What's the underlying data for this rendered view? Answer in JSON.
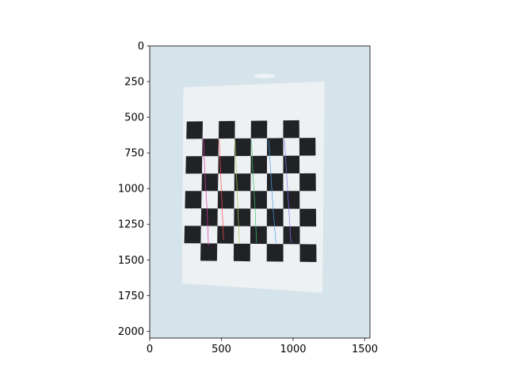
{
  "chart_data": {
    "type": "image",
    "title": "",
    "xlabel": "",
    "ylabel": "",
    "xlim": [
      0,
      1536
    ],
    "ylim": [
      2048,
      0
    ],
    "x_ticks": [
      0,
      500,
      1000,
      1500
    ],
    "y_ticks": [
      0,
      250,
      500,
      750,
      1000,
      1250,
      1500,
      1750,
      2000
    ],
    "x_tick_labels": [
      "0",
      "500",
      "1000",
      "1500"
    ],
    "y_tick_labels": [
      "0",
      "250",
      "500",
      "750",
      "1000",
      "1250",
      "1500",
      "1750",
      "2000"
    ],
    "image": {
      "description_colors": {
        "background": "#d5e3ea",
        "paper": "#eef1f4",
        "square": "#202226"
      },
      "paper_corners": [
        [
          235,
          290
        ],
        [
          1220,
          250
        ],
        [
          1205,
          1730
        ],
        [
          225,
          1665
        ]
      ],
      "grid_rows": 8,
      "grid_cols": 8,
      "grid_corners": {
        "top_left": [
          258,
          530
        ],
        "top_right": [
          1155,
          520
        ],
        "bottom_left": [
          238,
          1505
        ],
        "bottom_right": [
          1163,
          1515
        ]
      },
      "corner_lines": [
        {
          "color": "#d83aa8",
          "x": [
            375,
            385,
            400,
            410
          ],
          "y": [
            650,
            900,
            1150,
            1400
          ]
        },
        {
          "color": "#ff4d4d",
          "x": [
            485,
            495,
            505,
            515
          ],
          "y": [
            660,
            900,
            1130,
            1360
          ]
        },
        {
          "color": "#a6c24a",
          "x": [
            595,
            605,
            615,
            625
          ],
          "y": [
            660,
            900,
            1140,
            1380
          ]
        },
        {
          "color": "#39c26c",
          "x": [
            710,
            720,
            735,
            745
          ],
          "y": [
            660,
            900,
            1140,
            1380
          ]
        },
        {
          "color": "#4aa0e0",
          "x": [
            830,
            845,
            860,
            880
          ],
          "y": [
            660,
            900,
            1140,
            1380
          ]
        },
        {
          "color": "#8c6ef0",
          "x": [
            940,
            955,
            970,
            985
          ],
          "y": [
            660,
            900,
            1140,
            1380
          ]
        }
      ]
    }
  }
}
